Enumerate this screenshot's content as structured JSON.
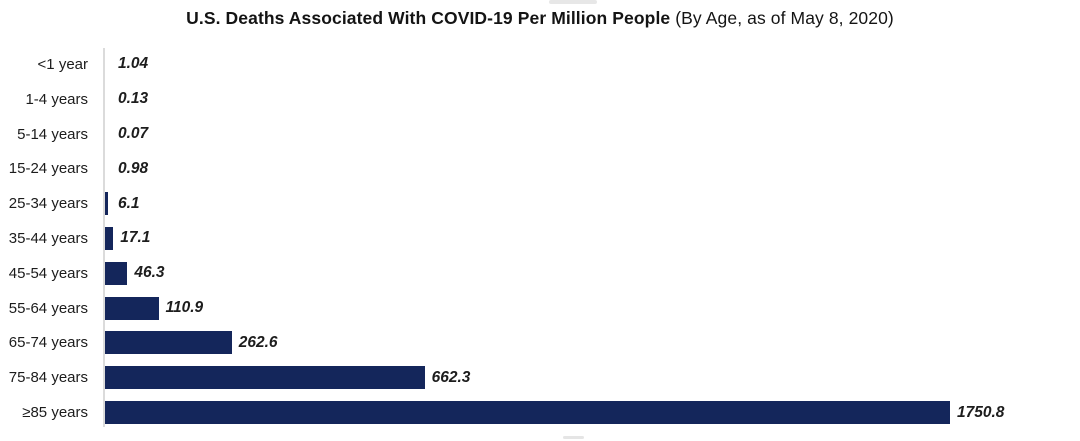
{
  "title": {
    "bold": "U.S. Deaths Associated With COVID-19 Per Million People",
    "regular": " (By Age, as of May 8, 2020)"
  },
  "chart_data": {
    "type": "bar",
    "orientation": "horizontal",
    "title": "U.S. Deaths Associated With COVID-19 Per Million People (By Age, as of May 8, 2020)",
    "categories": [
      "<1 year",
      "1-4 years",
      "5-14 years",
      "15-24 years",
      "25-34 years",
      "35-44 years",
      "45-54 years",
      "55-64 years",
      "65-74 years",
      "75-84 years",
      "≥85 years"
    ],
    "values": [
      1.04,
      0.13,
      0.07,
      0.98,
      6.1,
      17.1,
      46.3,
      110.9,
      262.6,
      662.3,
      1750.8
    ],
    "value_labels": [
      "1.04",
      "0.13",
      "0.07",
      "0.98",
      "6.1",
      "17.1",
      "46.3",
      "110.9",
      "262.6",
      "662.3",
      "1750.8"
    ],
    "xlabel": "",
    "ylabel": "",
    "xlim": [
      0,
      1750.8
    ],
    "grid": false,
    "legend": false,
    "data_labels": "end-of-bar, bold italic",
    "bar_color": "#14265b",
    "axis_line_color": "#dbdbdb",
    "text_color": "#1c1c1c",
    "background_color": "#ffffff"
  }
}
